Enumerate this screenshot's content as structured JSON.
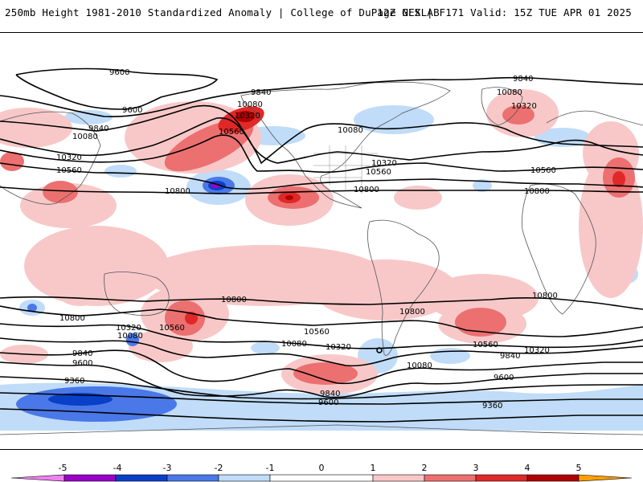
{
  "header": {
    "title": "250mb Height 1981-2010 Standardized Anomaly | College of DuPage NEXLAB",
    "run_info": "12Z GFS | F171 Valid: 15Z TUE APR 01 2025"
  },
  "colors": {
    "neg5": "#f080f0",
    "neg4": "#9a00c8",
    "neg3": "#0a40c8",
    "neg2": "#4a78e8",
    "neg1": "#c0dcf8",
    "zero": "#ffffff",
    "pos1": "#f8c8c8",
    "pos2": "#ec7070",
    "pos3": "#e02828",
    "pos4": "#b00000",
    "pos5": "#ffa000"
  },
  "contour_labels": [
    {
      "id": "c1",
      "text": "9600"
    },
    {
      "id": "c2",
      "text": "9600"
    },
    {
      "id": "c3",
      "text": "9840"
    },
    {
      "id": "c4",
      "text": "10080"
    },
    {
      "id": "c5",
      "text": "10320"
    },
    {
      "id": "c6",
      "text": "10560"
    },
    {
      "id": "c7",
      "text": "10800"
    },
    {
      "id": "c8",
      "text": "10080"
    },
    {
      "id": "c9",
      "text": "10320"
    },
    {
      "id": "c10",
      "text": "10560"
    },
    {
      "id": "c11",
      "text": "9840"
    },
    {
      "id": "c12",
      "text": "10080"
    },
    {
      "id": "c13",
      "text": "10320"
    },
    {
      "id": "c14",
      "text": "10560"
    },
    {
      "id": "c15",
      "text": "10800"
    },
    {
      "id": "c16",
      "text": "10080"
    },
    {
      "id": "c17",
      "text": "10320"
    },
    {
      "id": "c18",
      "text": "9840"
    },
    {
      "id": "c19",
      "text": "10080"
    },
    {
      "id": "c20",
      "text": "10320"
    },
    {
      "id": "c21",
      "text": "10560"
    },
    {
      "id": "c22",
      "text": "10800"
    },
    {
      "id": "c23",
      "text": "10800"
    },
    {
      "id": "c24",
      "text": "10560"
    },
    {
      "id": "c25",
      "text": "10320"
    },
    {
      "id": "c26",
      "text": "10080"
    },
    {
      "id": "c27",
      "text": "9840"
    },
    {
      "id": "c28",
      "text": "9600"
    },
    {
      "id": "c29",
      "text": "9360"
    },
    {
      "id": "c30",
      "text": "10800"
    },
    {
      "id": "c31",
      "text": "10560"
    },
    {
      "id": "c32",
      "text": "10320"
    },
    {
      "id": "c33",
      "text": "10080"
    },
    {
      "id": "c34",
      "text": "9840"
    },
    {
      "id": "c35",
      "text": "9600"
    },
    {
      "id": "c36",
      "text": "9360"
    },
    {
      "id": "c37",
      "text": "10800"
    },
    {
      "id": "c38",
      "text": "10560"
    },
    {
      "id": "c39",
      "text": "10320"
    },
    {
      "id": "c40",
      "text": "10080"
    },
    {
      "id": "c41",
      "text": "9840"
    },
    {
      "id": "c42",
      "text": "9600"
    },
    {
      "id": "c43",
      "text": "9360"
    },
    {
      "id": "c44",
      "text": "10800"
    },
    {
      "id": "c45",
      "text": "10560"
    },
    {
      "id": "c46",
      "text": "10320"
    },
    {
      "id": "c47",
      "text": "10080"
    },
    {
      "id": "c48",
      "text": "9840"
    },
    {
      "id": "c49",
      "text": "9600"
    },
    {
      "id": "c50",
      "text": "9360"
    }
  ],
  "colorbar": {
    "ticks": [
      "-5",
      "-4",
      "-3",
      "-2",
      "-1",
      "0",
      "1",
      "2",
      "3",
      "4",
      "5"
    ]
  }
}
